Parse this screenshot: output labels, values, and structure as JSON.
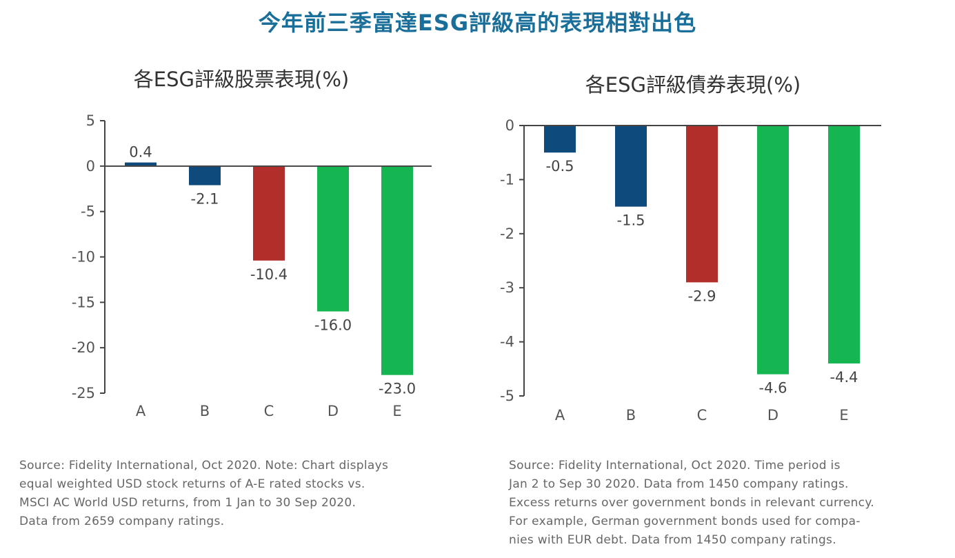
{
  "title": "今年前三季富達ESG評級高的表現相對出色",
  "chart_data": [
    {
      "type": "bar",
      "title": "各ESG評級股票表現(%)",
      "categories": [
        "A",
        "B",
        "C",
        "D",
        "E"
      ],
      "values": [
        0.4,
        -2.1,
        -10.4,
        -16.0,
        -23.0
      ],
      "value_labels": [
        "0.4",
        "-2.1",
        "-10.4",
        "-16.0",
        "-23.0"
      ],
      "colors": [
        "#0f4a7c",
        "#0f4a7c",
        "#b22e2b",
        "#15b551",
        "#15b551"
      ],
      "ylim": [
        -25,
        5
      ],
      "yticks": [
        5,
        0,
        -5,
        -10,
        -15,
        -20,
        -25
      ],
      "ytick_labels": [
        "5",
        "0",
        "-5",
        "-10",
        "-15",
        "-20",
        "-25"
      ],
      "xlabel": "",
      "ylabel": "",
      "grid": false
    },
    {
      "type": "bar",
      "title": "各ESG評級債券表現(%)",
      "categories": [
        "A",
        "B",
        "C",
        "D",
        "E"
      ],
      "values": [
        -0.5,
        -1.5,
        -2.9,
        -4.6,
        -4.4
      ],
      "value_labels": [
        "-0.5",
        "-1.5",
        "-2.9",
        "-4.6",
        "-4.4"
      ],
      "colors": [
        "#0f4a7c",
        "#0f4a7c",
        "#b22e2b",
        "#15b551",
        "#15b551"
      ],
      "ylim": [
        -5,
        0
      ],
      "yticks": [
        0,
        -1,
        -2,
        -3,
        -4,
        -5
      ],
      "ytick_labels": [
        "0",
        "-1",
        "-2",
        "-3",
        "-4",
        "-5"
      ],
      "xlabel": "",
      "ylabel": "",
      "grid": false
    }
  ],
  "notes": {
    "left": [
      "Source: Fidelity International, Oct 2020. Note: Chart displays",
      "equal weighted USD stock returns of A-E rated stocks vs.",
      "MSCI AC World USD returns, from 1 Jan to 30 Sep 2020.",
      "Data from 2659 company ratings."
    ],
    "right": [
      "Source: Fidelity International, Oct 2020. Time period is",
      "Jan 2 to Sep 30 2020. Data from 1450 company ratings.",
      "Excess returns over government bonds in relevant currency.",
      "For example, German government bonds used for compa-",
      "nies with EUR debt. Data from 1450 company ratings."
    ]
  }
}
